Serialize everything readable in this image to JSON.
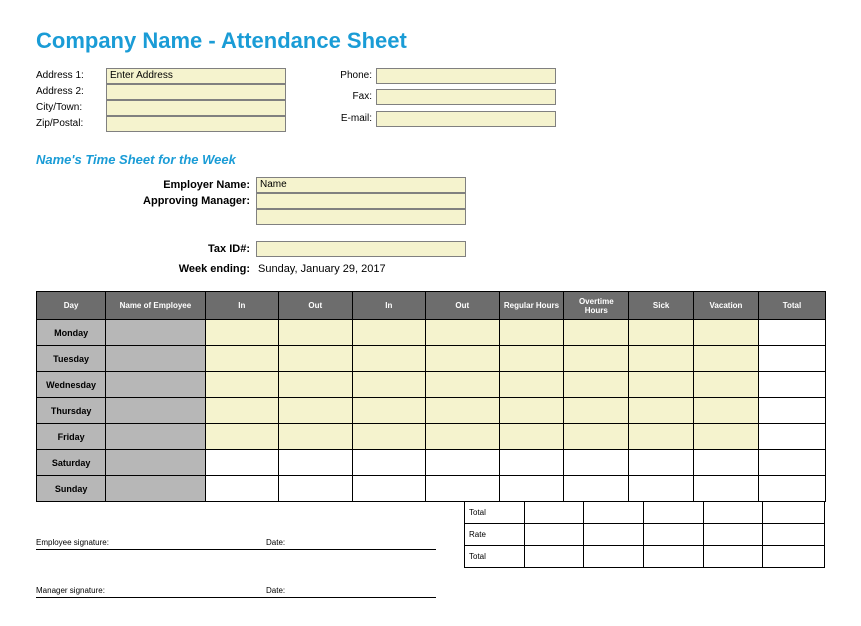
{
  "title": "Company Name - Attendance Sheet",
  "address": {
    "labels": {
      "a1": "Address 1:",
      "a2": "Address 2:",
      "city": "City/Town:",
      "zip": "Zip/Postal:"
    },
    "values": {
      "a1": "Enter Address",
      "a2": "",
      "city": "",
      "zip": ""
    }
  },
  "contact": {
    "labels": {
      "phone": "Phone:",
      "fax": "Fax:",
      "email": "E-mail:"
    },
    "values": {
      "phone": "",
      "fax": "",
      "email": ""
    }
  },
  "subhead": "Name's Time Sheet for the Week",
  "employer": {
    "labels": {
      "name": "Employer Name:",
      "mgr": "Approving Manager:",
      "tax": "Tax ID#:",
      "week": "Week ending:"
    },
    "values": {
      "name": "Name",
      "mgr": "",
      "mgr2": "",
      "tax": "",
      "week": "Sunday, January 29, 2017"
    }
  },
  "timesheet": {
    "headers": [
      "Day",
      "Name of Employee",
      "In",
      "Out",
      "In",
      "Out",
      "Regular Hours",
      "Overtime Hours",
      "Sick",
      "Vacation",
      "Total"
    ],
    "days": [
      "Monday",
      "Tuesday",
      "Wednesday",
      "Thursday",
      "Friday",
      "Saturday",
      "Sunday"
    ],
    "colors": {
      "header_bg": "#6d6d6d",
      "header_fg": "#ffffff",
      "day_bg": "#b7b7b7",
      "cell_bg": "#f5f3ce",
      "total_bg": "#ffffff",
      "border": "#000000"
    }
  },
  "subtotal": {
    "rows": [
      "Total",
      "Rate",
      "Total"
    ]
  },
  "signatures": {
    "emp": "Employee signature:",
    "mgr": "Manager signature:",
    "date": "Date:"
  }
}
